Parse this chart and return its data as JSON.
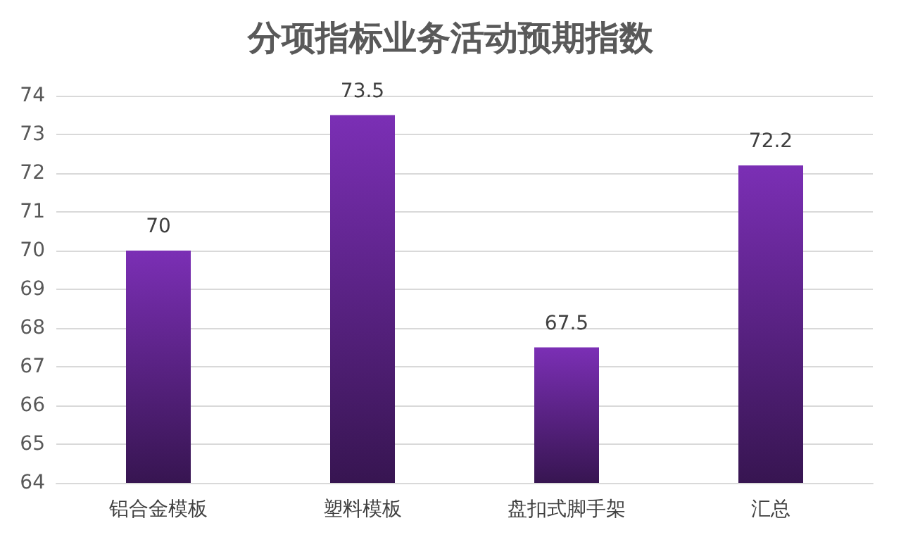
{
  "chart_data": {
    "type": "bar",
    "title": "分项指标业务活动预期指数",
    "categories": [
      "铝合金模板",
      "塑料模板",
      "盘扣式脚手架",
      "汇总"
    ],
    "values": [
      70,
      73.5,
      67.5,
      72.2
    ],
    "color": "#7b2fb5",
    "ylim": [
      64,
      74
    ],
    "yticks": [
      64,
      65,
      66,
      67,
      68,
      69,
      70,
      71,
      72,
      73,
      74
    ],
    "grid": "y",
    "data_labels": true
  }
}
